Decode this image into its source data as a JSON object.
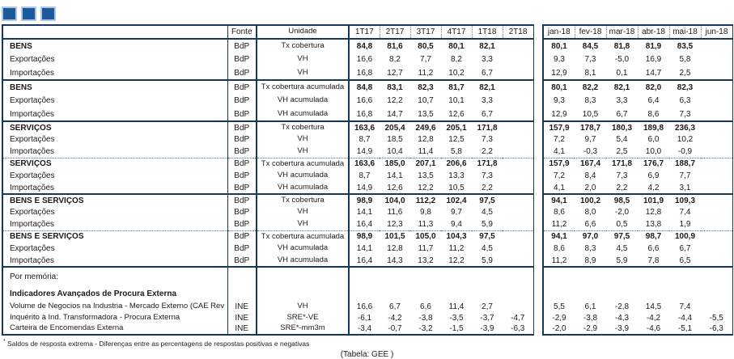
{
  "colors": {
    "border": "#17375D",
    "square_fill": "#1B5A9B",
    "square_border": "#AEC6E0",
    "text": "#1a1a1a"
  },
  "decor": {
    "square_count": 3
  },
  "header": {
    "label": "",
    "fonte": "Fonte",
    "unidade": "Unidade",
    "quarters": [
      "1T17",
      "2T17",
      "3T17",
      "4T17",
      "1T18",
      "2T18"
    ],
    "months": [
      "jan-18",
      "fev-18",
      "mar-18",
      "abr-18",
      "mai-18",
      "jun-18"
    ]
  },
  "blocks": [
    {
      "divider": "none",
      "rows": [
        {
          "label": "BENS",
          "bold": true,
          "fonte": "BdP",
          "unidade": "Tx cobertura",
          "q": [
            "84,8",
            "81,6",
            "80,5",
            "80,1",
            "82,1",
            ""
          ],
          "m": [
            "80,1",
            "84,5",
            "81,8",
            "81,9",
            "83,5",
            ""
          ]
        },
        {
          "label": "Exportações",
          "bold": false,
          "fonte": "BdP",
          "unidade": "VH",
          "q": [
            "16,6",
            "8,2",
            "7,7",
            "8,2",
            "3,3",
            ""
          ],
          "m": [
            "9,3",
            "7,3",
            "-5,0",
            "16,9",
            "5,8",
            ""
          ]
        },
        {
          "label": "Importações",
          "bold": false,
          "fonte": "BdP",
          "unidade": "VH",
          "q": [
            "16,8",
            "12,7",
            "11,2",
            "10,2",
            "6,7",
            ""
          ],
          "m": [
            "12,9",
            "8,1",
            "0,1",
            "14,7",
            "2,5",
            ""
          ]
        }
      ]
    },
    {
      "divider": "solid",
      "rows": [
        {
          "label": "BENS",
          "bold": true,
          "fonte": "BdP",
          "unidade": "Tx cobertura acumulada",
          "q": [
            "84,8",
            "83,1",
            "82,3",
            "81,7",
            "82,1",
            ""
          ],
          "m": [
            "80,1",
            "82,2",
            "82,1",
            "82,0",
            "82,3",
            ""
          ]
        },
        {
          "label": "Exportações",
          "bold": false,
          "fonte": "BdP",
          "unidade": "VH acumulada",
          "q": [
            "16,6",
            "12,2",
            "10,7",
            "10,1",
            "3,3",
            ""
          ],
          "m": [
            "9,3",
            "8,3",
            "3,3",
            "6,4",
            "6,3",
            ""
          ]
        },
        {
          "label": "Importações",
          "bold": false,
          "fonte": "BdP",
          "unidade": "VH acumulada",
          "q": [
            "16,8",
            "14,7",
            "13,5",
            "12,6",
            "6,7",
            ""
          ],
          "m": [
            "12,9",
            "10,5",
            "6,7",
            "8,6",
            "7,3",
            ""
          ]
        }
      ]
    },
    {
      "divider": "solid",
      "rows": [
        {
          "label": "SERVIÇOS",
          "bold": true,
          "fonte": "BdP",
          "unidade": "Tx cobertura",
          "q": [
            "163,6",
            "205,4",
            "249,6",
            "205,1",
            "171,8",
            ""
          ],
          "m": [
            "157,9",
            "178,7",
            "180,3",
            "189,8",
            "236,3",
            ""
          ]
        },
        {
          "label": "Exportações",
          "bold": false,
          "fonte": "BdP",
          "unidade": "VH",
          "q": [
            "8,7",
            "18,5",
            "12,8",
            "12,5",
            "7,3",
            ""
          ],
          "m": [
            "7,2",
            "9,7",
            "5,4",
            "6,0",
            "10,2",
            ""
          ]
        },
        {
          "label": "Importações",
          "bold": false,
          "fonte": "BdP",
          "unidade": "VH",
          "q": [
            "14,9",
            "10,4",
            "11,4",
            "5,8",
            "2,2",
            ""
          ],
          "m": [
            "4,1",
            "-0,3",
            "2,5",
            "10,0",
            "-0,9",
            ""
          ]
        }
      ]
    },
    {
      "divider": "dotted",
      "rows": [
        {
          "label": "SERVIÇOS",
          "bold": true,
          "fonte": "BdP",
          "unidade": "Tx cobertura acumulada",
          "q": [
            "163,6",
            "185,0",
            "207,1",
            "206,6",
            "171,8",
            ""
          ],
          "m": [
            "157,9",
            "167,4",
            "171,8",
            "176,7",
            "188,7",
            ""
          ]
        },
        {
          "label": "Exportações",
          "bold": false,
          "fonte": "BdP",
          "unidade": "VH acumulada",
          "q": [
            "8,7",
            "14,1",
            "13,5",
            "13,3",
            "7,3",
            ""
          ],
          "m": [
            "7,2",
            "8,4",
            "7,3",
            "6,9",
            "7,7",
            ""
          ]
        },
        {
          "label": "Importações",
          "bold": false,
          "fonte": "BdP",
          "unidade": "VH acumulada",
          "q": [
            "14,9",
            "12,6",
            "12,2",
            "10,5",
            "2,2",
            ""
          ],
          "m": [
            "4,1",
            "2,0",
            "2,2",
            "4,2",
            "3,1",
            ""
          ]
        }
      ]
    },
    {
      "divider": "solid",
      "rows": [
        {
          "label": "BENS E SERVIÇOS",
          "bold": true,
          "fonte": "BdP",
          "unidade": "Tx cobertura",
          "q": [
            "98,9",
            "104,0",
            "112,2",
            "102,4",
            "97,5",
            ""
          ],
          "m": [
            "94,1",
            "100,2",
            "98,5",
            "101,9",
            "109,3",
            ""
          ]
        },
        {
          "label": "Exportações",
          "bold": false,
          "fonte": "BdP",
          "unidade": "VH",
          "q": [
            "14,1",
            "11,6",
            "9,8",
            "9,7",
            "4,5",
            ""
          ],
          "m": [
            "8,6",
            "8,0",
            "-2,0",
            "12,8",
            "7,4",
            ""
          ]
        },
        {
          "label": "Importações",
          "bold": false,
          "fonte": "BdP",
          "unidade": "VH",
          "q": [
            "16,4",
            "12,3",
            "11,3",
            "9,4",
            "5,9",
            ""
          ],
          "m": [
            "11,2",
            "6,6",
            "0,5",
            "13,8",
            "1,9",
            ""
          ]
        }
      ]
    },
    {
      "divider": "dotted",
      "rows": [
        {
          "label": "BENS E SERVIÇOS",
          "bold": true,
          "fonte": "BdP",
          "unidade": "Tx cobertura acumulada",
          "q": [
            "98,9",
            "101,5",
            "105,0",
            "104,3",
            "97,5",
            ""
          ],
          "m": [
            "94,1",
            "97,0",
            "97,5",
            "98,7",
            "100,9",
            ""
          ]
        },
        {
          "label": "Exportações",
          "bold": false,
          "fonte": "BdP",
          "unidade": "VH acumulada",
          "q": [
            "14,1",
            "12,8",
            "11,7",
            "11,2",
            "4,5",
            ""
          ],
          "m": [
            "8,6",
            "8,3",
            "4,5",
            "6,6",
            "6,7",
            ""
          ]
        },
        {
          "label": "Importações",
          "bold": false,
          "fonte": "BdP",
          "unidade": "VH acumulada",
          "q": [
            "16,4",
            "14,3",
            "13,2",
            "12,2",
            "5,9",
            ""
          ],
          "m": [
            "11,2",
            "8,9",
            "5,9",
            "7,8",
            "6,5",
            ""
          ]
        }
      ]
    }
  ],
  "memo": {
    "title": "Por memória:",
    "subtitle": "Indicadores Avançados de Procura Externa",
    "rows": [
      {
        "label": "Volume de Negocios na Industria - Mercado Externo (CAE Rev",
        "bold": false,
        "fonte": "INE",
        "unidade": "VH",
        "q": [
          "16,6",
          "6,7",
          "6,6",
          "11,4",
          "2,7",
          ""
        ],
        "m": [
          "5,5",
          "6,1",
          "-2,8",
          "14,5",
          "7,4",
          ""
        ]
      },
      {
        "label": "Inquérito à Ind. Transformadora - Procura Externa",
        "bold": false,
        "fonte": "INE",
        "unidade": "SRE*-VE",
        "q": [
          "-6,1",
          "-4,2",
          "-3,8",
          "-3,5",
          "-3,7",
          "-4,7"
        ],
        "m": [
          "-2,9",
          "-3,8",
          "-4,3",
          "-4,2",
          "-4,4",
          "-5,5"
        ]
      },
      {
        "label": "Carteira de Encomendas Externa",
        "bold": false,
        "fonte": "INE",
        "unidade": "SRE*-mm3m",
        "q": [
          "-3,4",
          "-0,7",
          "-3,2",
          "-1,5",
          "-3,9",
          "-6,3"
        ],
        "m": [
          "-2,0",
          "-2,9",
          "-3,9",
          "-4,6",
          "-5,1",
          "-6,3"
        ]
      }
    ]
  },
  "footnote_marker": "*",
  "footnote_text": "Saldos de resposta extrema - Diferenças entre as percentagens de respostas positivas e negativas",
  "caption": "(Tabela: GEE )"
}
